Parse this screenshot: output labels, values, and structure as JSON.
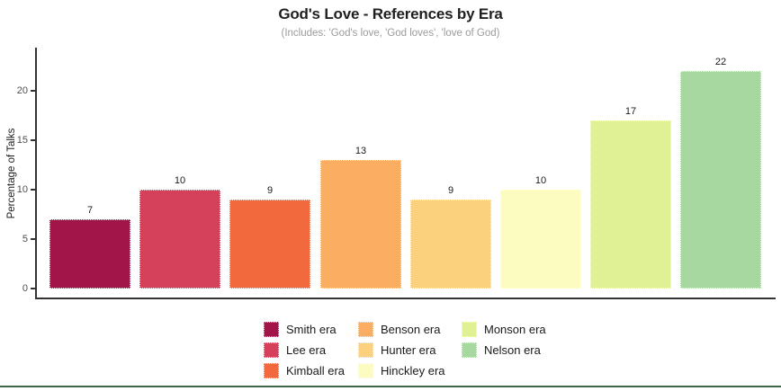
{
  "header": {
    "title": "God's Love - References by Era",
    "subtitle": "(Includes: 'God's love, 'God loves', 'love of God)"
  },
  "axes": {
    "ylabel": "Percentage of Talks",
    "yticks": [
      0,
      5,
      10,
      15,
      20
    ]
  },
  "chart_data": {
    "type": "bar",
    "title": "God's Love - References by Era",
    "subtitle": "(Includes: 'God's love, 'God loves', 'love of God)",
    "xlabel": "",
    "ylabel": "Percentage of Talks",
    "categories": [
      "Smith era",
      "Lee era",
      "Kimball era",
      "Benson era",
      "Hunter era",
      "Hinckley era",
      "Monson era",
      "Nelson era"
    ],
    "values": [
      7,
      10,
      9,
      13,
      9,
      10,
      17,
      22
    ],
    "bar_colors": [
      "#A21549",
      "#D5415A",
      "#F3693E",
      "#FBAD61",
      "#FCD17E",
      "#FDFCC0",
      "#E0F195",
      "#A7D8A0"
    ],
    "value_labels": [
      "7",
      "10",
      "9",
      "13",
      "9",
      "10",
      "17",
      "22"
    ],
    "ylim": [
      0,
      24.5
    ],
    "grid": false,
    "legend_position": "bottom",
    "legend_rows_per_column": 3
  },
  "footer": {
    "rule_color": "#3d6949"
  }
}
